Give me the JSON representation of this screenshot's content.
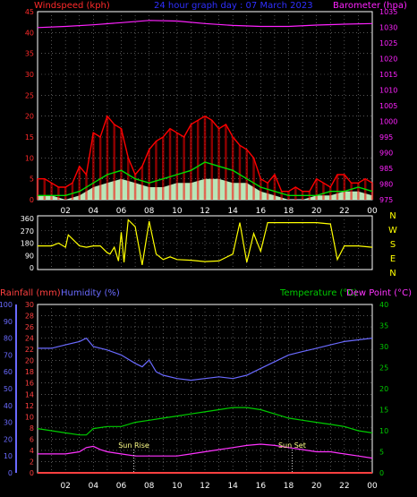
{
  "header": {
    "left_title": "Windspeed (kph)",
    "center_title": "24 hour graph day : 07 March 2023",
    "right_title": "Barometer (hpa)"
  },
  "colors": {
    "background": "#000000",
    "grid": "#8a8a8a",
    "axis_left_top": "#ff2a2a",
    "axis_right_top": "#ff22ff",
    "wind_speed": "#ff0000",
    "wind_avg": "#00dd00",
    "wind_gust_fill": "#ccffcc",
    "wind_dir": "#ffff00",
    "rain_axis": "#ff4040",
    "humidity": "#6a6aff",
    "temperature": "#00cc00",
    "dew_point": "#ff33ff",
    "sun_marker": "#ffff88"
  },
  "hour_labels": [
    "02",
    "04",
    "06",
    "08",
    "10",
    "12",
    "14",
    "16",
    "18",
    "20",
    "22",
    "00"
  ],
  "compass": [
    "N",
    "W",
    "S",
    "E",
    "N"
  ],
  "chart_data": [
    {
      "type": "line",
      "name": "wind_barometer",
      "xlabel": "",
      "ylabel": "Windspeed (kph)",
      "y2label": "Barometer (hpa)",
      "xlim": [
        0,
        24
      ],
      "ylim": [
        0,
        45
      ],
      "y2lim": [
        975,
        1035
      ],
      "yticks": [
        0,
        5,
        10,
        15,
        20,
        25,
        30,
        35,
        40,
        45
      ],
      "y2ticks": [
        975,
        980,
        985,
        990,
        995,
        1000,
        1005,
        1010,
        1015,
        1020,
        1025,
        1030,
        1035
      ],
      "grid": true,
      "barometer": {
        "x": [
          0,
          2,
          4,
          6,
          8,
          10,
          12,
          14,
          16,
          18,
          20,
          22,
          24
        ],
        "y": [
          1029.9,
          1030.3,
          1030.8,
          1031.5,
          1032.2,
          1032.0,
          1031.2,
          1030.6,
          1030.3,
          1030.3,
          1030.7,
          1031.0,
          1031.2
        ]
      },
      "wind_speed": {
        "x": [
          0,
          0.5,
          1,
          1.5,
          2,
          2.5,
          3,
          3.5,
          4,
          4.5,
          5,
          5.5,
          6,
          6.5,
          7,
          7.5,
          8,
          8.5,
          9,
          9.5,
          10,
          10.5,
          11,
          11.5,
          12,
          12.5,
          13,
          13.5,
          14,
          14.5,
          15,
          15.5,
          16,
          16.5,
          17,
          17.5,
          18,
          18.5,
          19,
          19.5,
          20,
          20.5,
          21,
          21.5,
          22,
          22.5,
          23,
          23.5,
          24
        ],
        "y": [
          5,
          5,
          4,
          3,
          3,
          4,
          8,
          6,
          16,
          15,
          20,
          18,
          17,
          10,
          6,
          8,
          12,
          14,
          15,
          17,
          16,
          15,
          18,
          19,
          20,
          19,
          17,
          18,
          15,
          13,
          12,
          10,
          5,
          4,
          6,
          2,
          2,
          3,
          2,
          2,
          5,
          4,
          3,
          6,
          6,
          4,
          4,
          5,
          4
        ]
      },
      "wind_avg": {
        "x": [
          0,
          1,
          2,
          3,
          4,
          5,
          6,
          7,
          8,
          9,
          10,
          11,
          12,
          13,
          14,
          15,
          16,
          17,
          18,
          19,
          20,
          21,
          22,
          23,
          24
        ],
        "y": [
          1,
          1,
          1,
          2,
          4,
          6,
          7,
          5,
          4,
          5,
          6,
          7,
          9,
          8,
          7,
          5,
          3,
          2,
          1,
          1,
          1,
          2,
          2,
          3,
          2
        ]
      },
      "wind_gust_fill": {
        "x": [
          0,
          1,
          2,
          3,
          4,
          5,
          6,
          7,
          8,
          9,
          10,
          11,
          12,
          13,
          14,
          15,
          16,
          17,
          18,
          19,
          20,
          21,
          22,
          23,
          24
        ],
        "y": [
          1,
          1,
          0,
          1,
          3,
          4,
          5,
          4,
          3,
          3,
          4,
          4,
          5,
          5,
          4,
          4,
          2,
          1,
          0,
          0,
          1,
          1,
          2,
          2,
          1
        ]
      }
    },
    {
      "type": "line",
      "name": "wind_direction",
      "ylabel": "",
      "xlim": [
        0,
        24
      ],
      "ylim": [
        0,
        360
      ],
      "yticks": [
        0,
        90,
        180,
        270,
        360
      ],
      "grid": true,
      "x": [
        0,
        1,
        1.5,
        2,
        2.2,
        3,
        3.5,
        4,
        4.5,
        5,
        5.2,
        5.5,
        5.8,
        6,
        6.2,
        6.5,
        7,
        7.5,
        8,
        8.5,
        9,
        9.5,
        10,
        11,
        12,
        13,
        14,
        14.5,
        15,
        15.5,
        16,
        16.5,
        17,
        18,
        19,
        20,
        21,
        21.5,
        22,
        23,
        24
      ],
      "y": [
        160,
        160,
        180,
        150,
        240,
        160,
        150,
        160,
        160,
        110,
        100,
        150,
        50,
        260,
        40,
        350,
        300,
        20,
        340,
        100,
        60,
        80,
        60,
        55,
        45,
        50,
        100,
        330,
        40,
        250,
        120,
        330,
        330,
        330,
        330,
        330,
        320,
        60,
        160,
        160,
        150
      ]
    },
    {
      "type": "line",
      "name": "rain_humidity_temperature",
      "y_rain_label": "Rainfall (mm)",
      "y_humidity_label": "Humidity (%)",
      "y_temp_label": "Temperature (°C)",
      "y_dew_label": "Dew Point (°C)",
      "xlim": [
        0,
        24
      ],
      "rain_ylim": [
        0,
        30
      ],
      "humidity_ylim": [
        0,
        100
      ],
      "temp_ylim": [
        0,
        40
      ],
      "rain_ticks": [
        0,
        2,
        4,
        6,
        8,
        10,
        12,
        14,
        16,
        18,
        20,
        22,
        24,
        26,
        28,
        30
      ],
      "humidity_ticks": [
        0,
        10,
        20,
        30,
        40,
        50,
        60,
        70,
        80,
        90,
        100
      ],
      "temp_ticks": [
        0,
        5,
        10,
        15,
        20,
        25,
        30,
        35,
        40
      ],
      "grid": true,
      "humidity": {
        "x": [
          0,
          1,
          2,
          3,
          3.5,
          4,
          5,
          6,
          7,
          7.5,
          8,
          8.5,
          9,
          10,
          11,
          12,
          13,
          14,
          15,
          16,
          17,
          18,
          19,
          20,
          21,
          22,
          23,
          24
        ],
        "y": [
          74,
          74,
          76,
          78,
          80,
          75,
          73,
          70,
          65,
          63,
          67,
          60,
          58,
          56,
          55,
          56,
          57,
          56,
          58,
          62,
          66,
          70,
          72,
          74,
          76,
          78,
          79,
          80
        ]
      },
      "temperature": {
        "x": [
          0,
          1,
          2,
          3,
          3.5,
          4,
          5,
          6,
          7,
          8,
          9,
          10,
          11,
          12,
          13,
          14,
          15,
          16,
          17,
          18,
          19,
          20,
          21,
          22,
          23,
          24
        ],
        "y": [
          10.5,
          10,
          9.5,
          9,
          9,
          10.5,
          11,
          11,
          12,
          12.5,
          13,
          13.5,
          14,
          14.5,
          15,
          15.5,
          15.5,
          15,
          14,
          13,
          12.5,
          12,
          11.5,
          11,
          10,
          9.5
        ]
      },
      "dew_point": {
        "x": [
          0,
          1,
          2,
          3,
          3.5,
          4,
          4.5,
          5,
          6,
          7,
          8,
          9,
          10,
          11,
          12,
          13,
          14,
          15,
          16,
          17,
          18,
          19,
          20,
          21,
          22,
          23,
          24
        ],
        "y": [
          4.5,
          4.5,
          4.5,
          5,
          6,
          6.3,
          5.5,
          5,
          4.5,
          4,
          4,
          4,
          4,
          4.5,
          5,
          5.5,
          6,
          6.5,
          6.8,
          6.5,
          6,
          5.5,
          5,
          5,
          4.5,
          4,
          3.5
        ]
      },
      "rainfall": {
        "x": [
          0,
          24
        ],
        "y": [
          0,
          0
        ]
      },
      "annotations": [
        {
          "label": "Sun Rise",
          "x": 6.9
        },
        {
          "label": "Sun Set",
          "x": 18.25
        }
      ]
    }
  ]
}
